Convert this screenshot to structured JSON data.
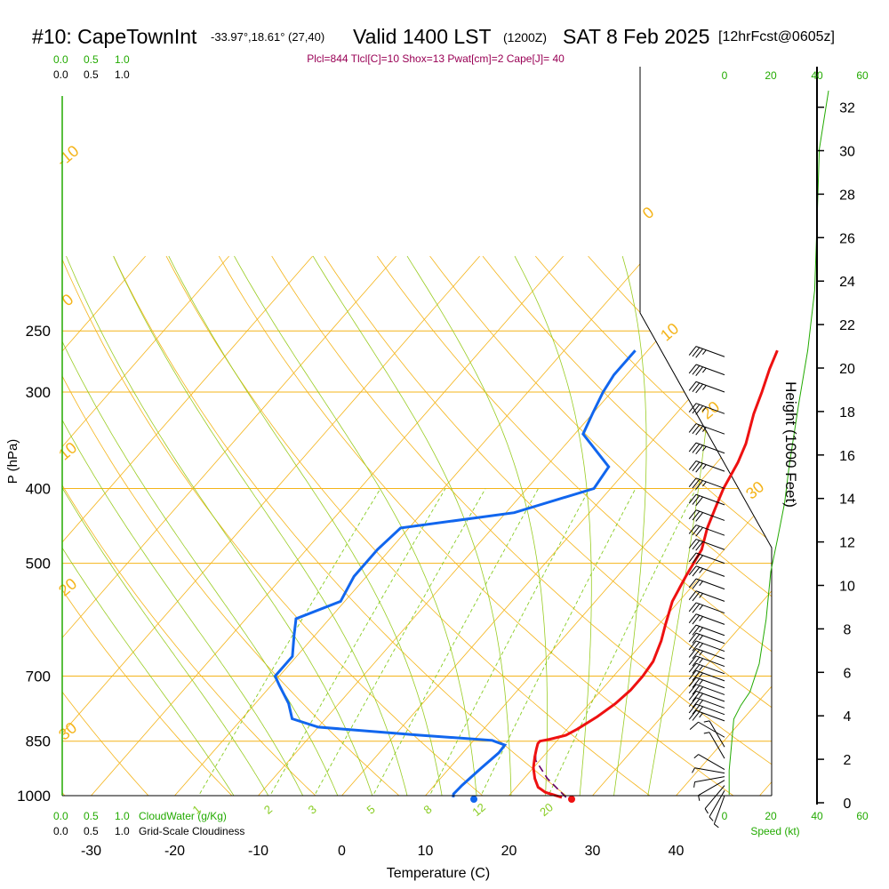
{
  "header": {
    "station": "#10: CapeTownInt",
    "coords": "-33.97°,18.61° (27,40)",
    "valid": "Valid 1400 LST",
    "utc": "(1200Z)",
    "date": "SAT 8 Feb 2025",
    "forecast": "[12hrFcst@0605z]"
  },
  "indices_line": "Plcl=844 Tlcl[C]=10 Shox=13 Pwat[cm]=2 Cape[J]= 40",
  "scales": {
    "cloud_water_ticks": [
      "0.0",
      "0.5",
      "1.0"
    ],
    "cloudiness_ticks": [
      "0.0",
      "0.5",
      "1.0"
    ],
    "cloud_water_label": "CloudWater (g/Kg)",
    "cloudiness_label": "Grid-Scale Cloudiness",
    "speed_ticks": [
      "0",
      "20",
      "40",
      "60"
    ],
    "speed_label": "Speed (kt)"
  },
  "colors": {
    "isobar": "#f4b41a",
    "dry_adiabat": "#f4b41a",
    "moist_adiabat": "#99cc22",
    "mixing_ratio": "#88cc22",
    "temperature": "#ee1111",
    "dewpoint": "#1166ee",
    "parcel": "#660066",
    "green_text": "#22aa00",
    "indices_text": "#990055"
  },
  "chart_data": {
    "type": "skew-t",
    "xlabel": "Temperature (C)",
    "ylabel": "P (hPa)",
    "right_label": "Height (1000 Feet)",
    "x_ticks": [
      -30,
      -20,
      -10,
      0,
      10,
      20,
      30,
      40
    ],
    "pressure_ticks": [
      250,
      300,
      400,
      500,
      700,
      850,
      1000
    ],
    "height_ticks": [
      0,
      2,
      4,
      6,
      8,
      10,
      12,
      14,
      16,
      18,
      20,
      22,
      24,
      26,
      28,
      30,
      32
    ],
    "dry_adiabat_labels": [
      {
        "text": "-10",
        "theta": 50
      },
      {
        "text": "0",
        "theta": 60
      },
      {
        "text": "10",
        "theta": 70
      },
      {
        "text": "20",
        "theta": 80
      },
      {
        "text": "30",
        "theta": 90
      },
      {
        "text": "0",
        "theta": 100
      },
      {
        "text": "10",
        "theta": 110
      },
      {
        "text": "20",
        "theta": 120
      },
      {
        "text": "30",
        "theta": 130
      }
    ],
    "mixing_ratio_labels": [
      "1",
      "2",
      "3",
      "5",
      "8",
      "12",
      "20"
    ],
    "temperature": [
      {
        "p": 1005,
        "t": 26.5
      },
      {
        "p": 990,
        "t": 24.0
      },
      {
        "p": 975,
        "t": 22.6
      },
      {
        "p": 950,
        "t": 21.3
      },
      {
        "p": 920,
        "t": 20.0
      },
      {
        "p": 890,
        "t": 19.0
      },
      {
        "p": 870,
        "t": 18.4
      },
      {
        "p": 856,
        "t": 18.0
      },
      {
        "p": 850,
        "t": 18.0
      },
      {
        "p": 845,
        "t": 19.0
      },
      {
        "p": 835,
        "t": 20.5
      },
      {
        "p": 820,
        "t": 21.2
      },
      {
        "p": 790,
        "t": 22.3
      },
      {
        "p": 760,
        "t": 23.1
      },
      {
        "p": 730,
        "t": 23.5
      },
      {
        "p": 700,
        "t": 23.5
      },
      {
        "p": 670,
        "t": 23.2
      },
      {
        "p": 630,
        "t": 22.0
      },
      {
        "p": 600,
        "t": 20.8
      },
      {
        "p": 560,
        "t": 19.2
      },
      {
        "p": 520,
        "t": 18.2
      },
      {
        "p": 480,
        "t": 17.3
      },
      {
        "p": 450,
        "t": 15.7
      },
      {
        "p": 420,
        "t": 14.4
      },
      {
        "p": 400,
        "t": 13.5
      },
      {
        "p": 370,
        "t": 12.5
      },
      {
        "p": 350,
        "t": 11.5
      },
      {
        "p": 320,
        "t": 9.3
      },
      {
        "p": 300,
        "t": 8.0
      },
      {
        "p": 280,
        "t": 6.5
      },
      {
        "p": 265,
        "t": 5.5
      }
    ],
    "dewpoint": [
      {
        "p": 1005,
        "t": 13.5
      },
      {
        "p": 995,
        "t": 13.2
      },
      {
        "p": 970,
        "t": 13.3
      },
      {
        "p": 920,
        "t": 13.8
      },
      {
        "p": 880,
        "t": 14.3
      },
      {
        "p": 860,
        "t": 14.2
      },
      {
        "p": 848,
        "t": 12.2
      },
      {
        "p": 835,
        "t": 3.0
      },
      {
        "p": 815,
        "t": -10.0
      },
      {
        "p": 795,
        "t": -14.0
      },
      {
        "p": 760,
        "t": -16.0
      },
      {
        "p": 720,
        "t": -19.0
      },
      {
        "p": 700,
        "t": -20.5
      },
      {
        "p": 660,
        "t": -20.5
      },
      {
        "p": 620,
        "t": -22.5
      },
      {
        "p": 590,
        "t": -24.0
      },
      {
        "p": 560,
        "t": -20.5
      },
      {
        "p": 520,
        "t": -21.5
      },
      {
        "p": 480,
        "t": -21.5
      },
      {
        "p": 450,
        "t": -21.0
      },
      {
        "p": 430,
        "t": -9.0
      },
      {
        "p": 400,
        "t": -2.0
      },
      {
        "p": 375,
        "t": -2.5
      },
      {
        "p": 340,
        "t": -9.0
      },
      {
        "p": 320,
        "t": -10.0
      },
      {
        "p": 300,
        "t": -11.0
      },
      {
        "p": 285,
        "t": -11.5
      },
      {
        "p": 265,
        "t": -11.5
      }
    ],
    "parcel": [
      {
        "p": 1005,
        "t": 27.0
      },
      {
        "p": 950,
        "t": 22.8
      },
      {
        "p": 900,
        "t": 19.5
      },
      {
        "p": 880,
        "t": 18.7
      }
    ],
    "surface_temperature": 27.5,
    "surface_dewpoint": 15.8,
    "wind_speed_profile": [
      {
        "p": 1000,
        "kt": 2
      },
      {
        "p": 960,
        "kt": 2
      },
      {
        "p": 920,
        "kt": 3
      },
      {
        "p": 880,
        "kt": 4
      },
      {
        "p": 860,
        "kt": 7
      },
      {
        "p": 840,
        "kt": 11
      },
      {
        "p": 800,
        "kt": 15
      },
      {
        "p": 740,
        "kt": 18
      },
      {
        "p": 680,
        "kt": 20
      },
      {
        "p": 640,
        "kt": 23
      },
      {
        "p": 600,
        "kt": 26
      },
      {
        "p": 560,
        "kt": 28
      },
      {
        "p": 500,
        "kt": 32
      },
      {
        "p": 450,
        "kt": 36
      },
      {
        "p": 400,
        "kt": 39
      },
      {
        "p": 350,
        "kt": 40
      },
      {
        "p": 300,
        "kt": 41
      },
      {
        "p": 265,
        "kt": 45
      }
    ],
    "wind_barbs": [
      {
        "p": 1000,
        "dir": 200,
        "kt": 5
      },
      {
        "p": 985,
        "dir": 210,
        "kt": 5
      },
      {
        "p": 970,
        "dir": 220,
        "kt": 5
      },
      {
        "p": 955,
        "dir": 240,
        "kt": 5
      },
      {
        "p": 945,
        "dir": 260,
        "kt": 5
      },
      {
        "p": 935,
        "dir": 280,
        "kt": 5
      },
      {
        "p": 925,
        "dir": 300,
        "kt": 5
      },
      {
        "p": 895,
        "dir": 330,
        "kt": 5
      },
      {
        "p": 865,
        "dir": 330,
        "kt": 5
      },
      {
        "p": 840,
        "dir": 300,
        "kt": 10
      },
      {
        "p": 800,
        "dir": 290,
        "kt": 25
      },
      {
        "p": 785,
        "dir": 290,
        "kt": 25
      },
      {
        "p": 770,
        "dir": 290,
        "kt": 25
      },
      {
        "p": 755,
        "dir": 290,
        "kt": 25
      },
      {
        "p": 740,
        "dir": 290,
        "kt": 25
      },
      {
        "p": 725,
        "dir": 290,
        "kt": 25
      },
      {
        "p": 710,
        "dir": 290,
        "kt": 25
      },
      {
        "p": 695,
        "dir": 290,
        "kt": 25
      },
      {
        "p": 680,
        "dir": 290,
        "kt": 25
      },
      {
        "p": 665,
        "dir": 290,
        "kt": 25
      },
      {
        "p": 650,
        "dir": 290,
        "kt": 25
      },
      {
        "p": 635,
        "dir": 290,
        "kt": 25
      },
      {
        "p": 620,
        "dir": 290,
        "kt": 25
      },
      {
        "p": 600,
        "dir": 290,
        "kt": 25
      },
      {
        "p": 580,
        "dir": 290,
        "kt": 25
      },
      {
        "p": 560,
        "dir": 290,
        "kt": 25
      },
      {
        "p": 540,
        "dir": 290,
        "kt": 25
      },
      {
        "p": 520,
        "dir": 290,
        "kt": 25
      },
      {
        "p": 500,
        "dir": 290,
        "kt": 30
      },
      {
        "p": 480,
        "dir": 290,
        "kt": 30
      },
      {
        "p": 460,
        "dir": 290,
        "kt": 30
      },
      {
        "p": 440,
        "dir": 290,
        "kt": 30
      },
      {
        "p": 420,
        "dir": 290,
        "kt": 30
      },
      {
        "p": 400,
        "dir": 290,
        "kt": 35
      },
      {
        "p": 380,
        "dir": 290,
        "kt": 35
      },
      {
        "p": 360,
        "dir": 290,
        "kt": 35
      },
      {
        "p": 340,
        "dir": 290,
        "kt": 35
      },
      {
        "p": 320,
        "dir": 290,
        "kt": 35
      },
      {
        "p": 300,
        "dir": 290,
        "kt": 35
      },
      {
        "p": 285,
        "dir": 290,
        "kt": 35
      },
      {
        "p": 270,
        "dir": 290,
        "kt": 35
      }
    ]
  }
}
